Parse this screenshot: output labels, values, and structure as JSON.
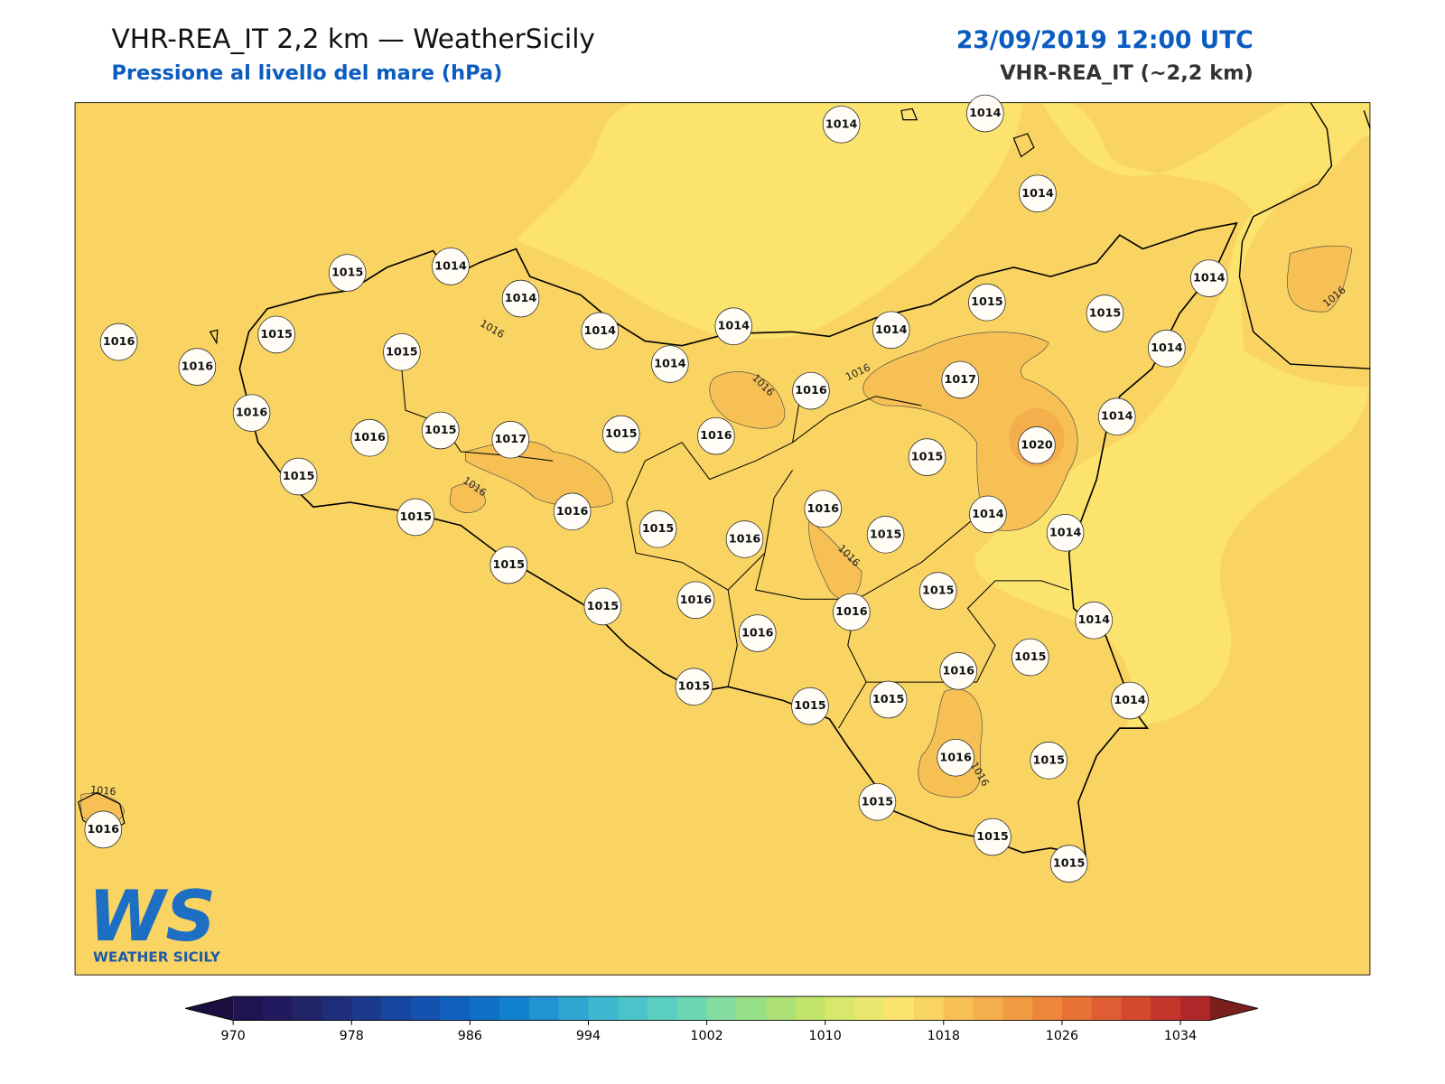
{
  "header": {
    "title": "VHR-REA_IT 2,2 km — WeatherSicily",
    "subtitle": "Pressione al livello del mare (hPa)",
    "datetime": "23/09/2019 12:00 UTC",
    "model": "VHR-REA_IT (~2,2 km)"
  },
  "stations": [
    1014,
    1014,
    1014,
    1015,
    1014,
    1014,
    1016,
    1016,
    1015,
    1015,
    1014,
    1014,
    1014,
    1014,
    1015,
    1015,
    1014,
    1014,
    1016,
    1017,
    1014,
    1016,
    1016,
    1015,
    1017,
    1015,
    1016,
    1020,
    1015,
    1015,
    1015,
    1016,
    1016,
    1014,
    1014,
    1015,
    1015,
    1016,
    1015,
    1015,
    1015,
    1016,
    1016,
    1014,
    1016,
    1015,
    1016,
    1015,
    1015,
    1015,
    1014,
    1016,
    1015,
    1016,
    1015,
    1015,
    1015
  ],
  "contour_labels": [
    1016,
    1016,
    1016,
    1016,
    1016,
    1016,
    1016,
    1016
  ],
  "colorbar": {
    "lim": [
      970,
      1036
    ],
    "ticks": [
      970,
      978,
      986,
      994,
      1002,
      1010,
      1018,
      1026,
      1034
    ],
    "colors": [
      "#1f1450",
      "#221a5e",
      "#222468",
      "#1e2e7a",
      "#1b3a8c",
      "#1746a0",
      "#1452b0",
      "#1060c0",
      "#0f70c8",
      "#1282ce",
      "#2093d0",
      "#2ea6d2",
      "#3cb8d0",
      "#4ac4c8",
      "#5acec0",
      "#6cd6b2",
      "#84dca0",
      "#98e088",
      "#acdf76",
      "#c2e46a",
      "#d8e86c",
      "#ebe870",
      "#fbe36e",
      "#fad462",
      "#f6c055",
      "#f4ae4c",
      "#f19c43",
      "#ee873b",
      "#e97236",
      "#e05c32",
      "#d4482e",
      "#c4362c",
      "#b2282a"
    ],
    "under_color": "#1a0f40",
    "over_color": "#7a1e1e"
  },
  "logo": {
    "mark": "WS",
    "name": "WEATHER SICILY"
  }
}
